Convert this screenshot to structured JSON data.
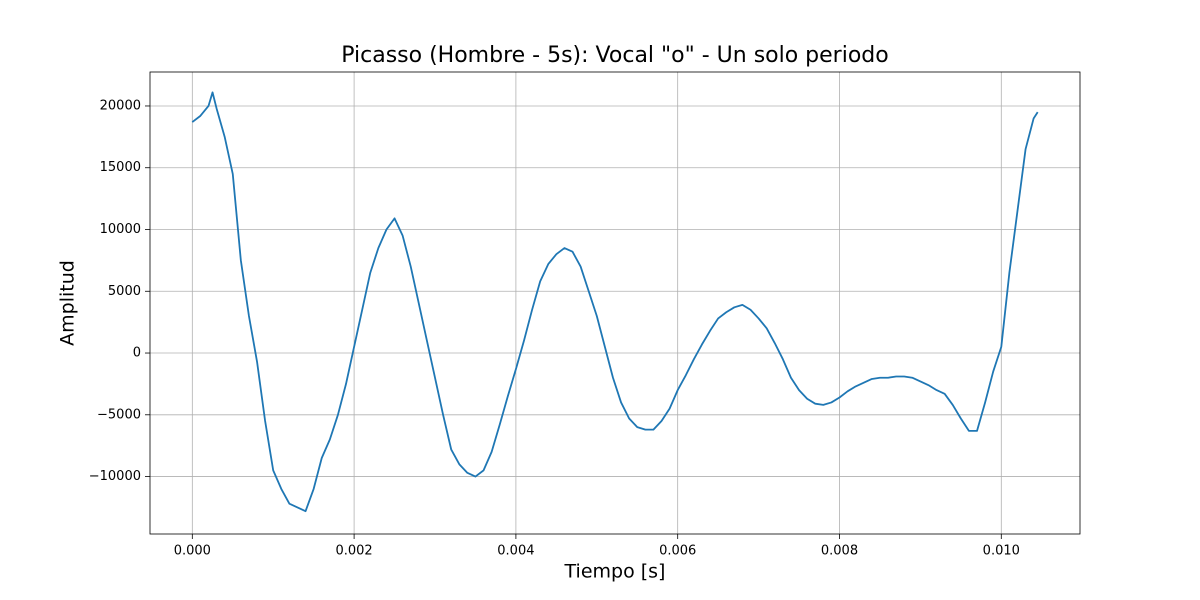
{
  "chart_data": {
    "type": "line",
    "title": "Picasso (Hombre - 5s): Vocal \"o\" - Un solo periodo",
    "x_label": "Tiempo [s]",
    "y_label": "Amplitud",
    "grid": true,
    "x": [
      0,
      0.0001,
      0.0002,
      0.00025,
      0.0003,
      0.0004,
      0.0005,
      0.0006,
      0.0007,
      0.0008,
      0.0009,
      0.001,
      0.0011,
      0.0012,
      0.0013,
      0.0014,
      0.0015,
      0.0016,
      0.0017,
      0.0018,
      0.0019,
      0.002,
      0.0021,
      0.0022,
      0.0023,
      0.0024,
      0.0025,
      0.0026,
      0.0027,
      0.0028,
      0.0029,
      0.003,
      0.0031,
      0.0032,
      0.0033,
      0.0034,
      0.0035,
      0.0036,
      0.0037,
      0.0038,
      0.0039,
      0.004,
      0.0041,
      0.0042,
      0.0043,
      0.0044,
      0.0045,
      0.0046,
      0.0047,
      0.0048,
      0.0049,
      0.005,
      0.0051,
      0.0052,
      0.0053,
      0.0054,
      0.0055,
      0.0056,
      0.0057,
      0.0058,
      0.0059,
      0.006,
      0.0061,
      0.0062,
      0.0063,
      0.0064,
      0.0065,
      0.0066,
      0.0067,
      0.0068,
      0.0069,
      0.007,
      0.0071,
      0.0072,
      0.0073,
      0.0074,
      0.0075,
      0.0076,
      0.0077,
      0.0078,
      0.0079,
      0.008,
      0.0081,
      0.0082,
      0.0083,
      0.0084,
      0.0085,
      0.0086,
      0.0087,
      0.0088,
      0.0089,
      0.009,
      0.0091,
      0.0092,
      0.0093,
      0.0094,
      0.0095,
      0.0096,
      0.0097,
      0.0098,
      0.0099,
      0.01,
      0.0101,
      0.0102,
      0.0103,
      0.0104,
      0.01045
    ],
    "series": [
      {
        "name": "Amplitud",
        "color": "#1f77b4",
        "values": [
          18700,
          19200,
          20000,
          21100,
          19800,
          17500,
          14500,
          7500,
          3000,
          -700,
          -5500,
          -9500,
          -11000,
          -12200,
          -12500,
          -12800,
          -11000,
          -8500,
          -7000,
          -5000,
          -2500,
          500,
          3500,
          6500,
          8500,
          10000,
          10900,
          9500,
          7000,
          4000,
          1000,
          -2000,
          -5000,
          -7800,
          -9000,
          -9700,
          -10000,
          -9500,
          -8000,
          -5800,
          -3500,
          -1300,
          1000,
          3500,
          5800,
          7200,
          8000,
          8500,
          8200,
          7000,
          5000,
          3000,
          500,
          -2000,
          -4000,
          -5300,
          -6000,
          -6200,
          -6200,
          -5500,
          -4500,
          -3000,
          -1800,
          -500,
          700,
          1800,
          2800,
          3300,
          3700,
          3900,
          3500,
          2800,
          2000,
          800,
          -500,
          -2000,
          -3000,
          -3700,
          -4100,
          -4200,
          -4000,
          -3600,
          -3100,
          -2700,
          -2400,
          -2100,
          -2000,
          -2000,
          -1900,
          -1900,
          -2000,
          -2300,
          -2600,
          -3000,
          -3300,
          -4200,
          -5300,
          -6300,
          -6300,
          -4000,
          -1500,
          500,
          6500,
          11500,
          16500,
          19000,
          19500
        ]
      }
    ],
    "xlim": [
      -0.000523,
      0.010973
    ],
    "ylim": [
      -14650,
      22750
    ],
    "xticks": [
      {
        "value": 0,
        "label": "0.000"
      },
      {
        "value": 0.002,
        "label": "0.002"
      },
      {
        "value": 0.004,
        "label": "0.004"
      },
      {
        "value": 0.006,
        "label": "0.006"
      },
      {
        "value": 0.008,
        "label": "0.008"
      },
      {
        "value": 0.01,
        "label": "0.010"
      }
    ],
    "yticks": [
      {
        "value": -10000,
        "label": "−10000"
      },
      {
        "value": -5000,
        "label": "−5000"
      },
      0,
      5000,
      10000,
      15000,
      20000
    ]
  }
}
